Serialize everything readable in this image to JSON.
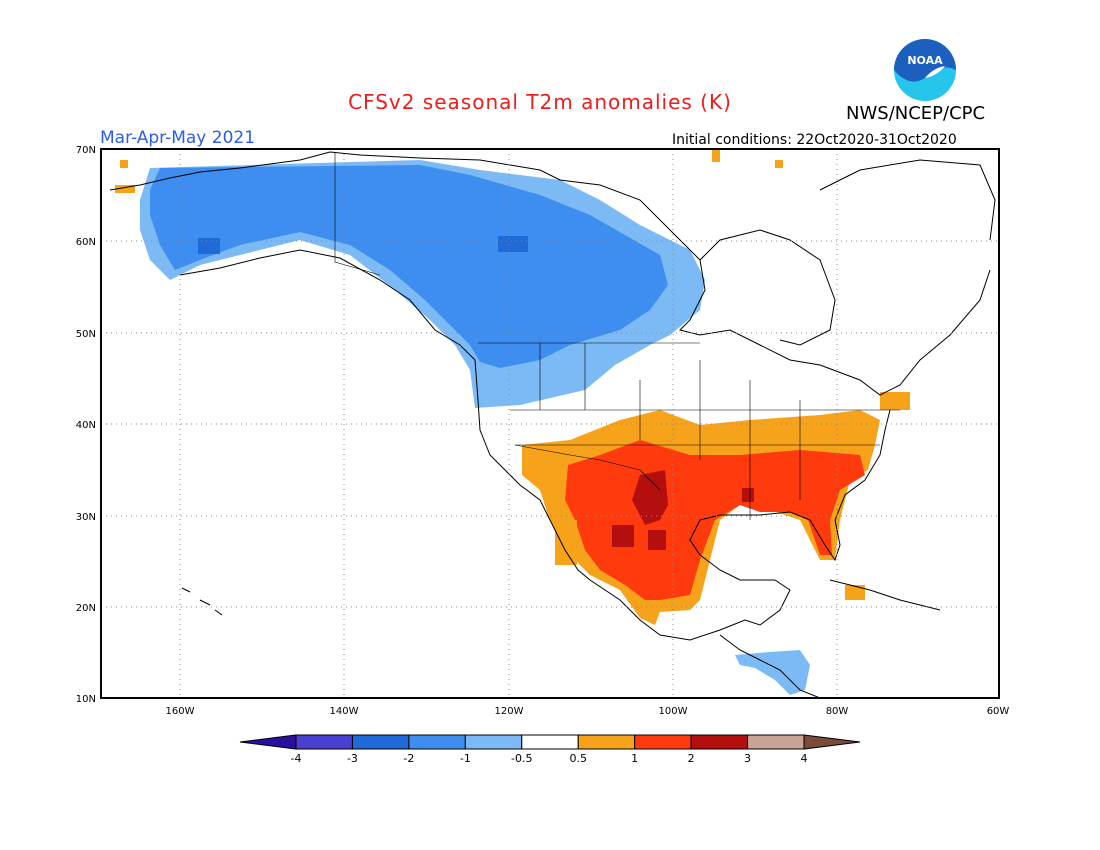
{
  "title": "CFSv2 seasonal T2m anomalies (K)",
  "agency": "NWS/NCEP/CPC",
  "logo_text": "NOAA",
  "period": "Mar-Apr-May 2021",
  "initial_conditions": "Initial conditions: 22Oct2020-31Oct2020",
  "lat_labels": [
    "70N",
    "60N",
    "50N",
    "40N",
    "30N",
    "20N",
    "10N"
  ],
  "lon_labels": [
    "160W",
    "140W",
    "120W",
    "100W",
    "80W",
    "60W"
  ],
  "colorbar": {
    "labels": [
      "-4",
      "-3",
      "-2",
      "-1",
      "-0.5",
      "0.5",
      "1",
      "2",
      "3",
      "4"
    ],
    "colors": [
      "#2b0f9e",
      "#4a3fd1",
      "#1f6ad6",
      "#3d8ef0",
      "#7cbaf5",
      "#ffffff",
      "#f7a21b",
      "#ff3b0e",
      "#b30f0f",
      "#c9a394",
      "#7a4a3a"
    ]
  },
  "colors": {
    "title": "#ee1c1c",
    "period": "#2a5ee8",
    "noaa_blue": "#1d5fbf",
    "noaa_cyan": "#26c5ec"
  }
}
